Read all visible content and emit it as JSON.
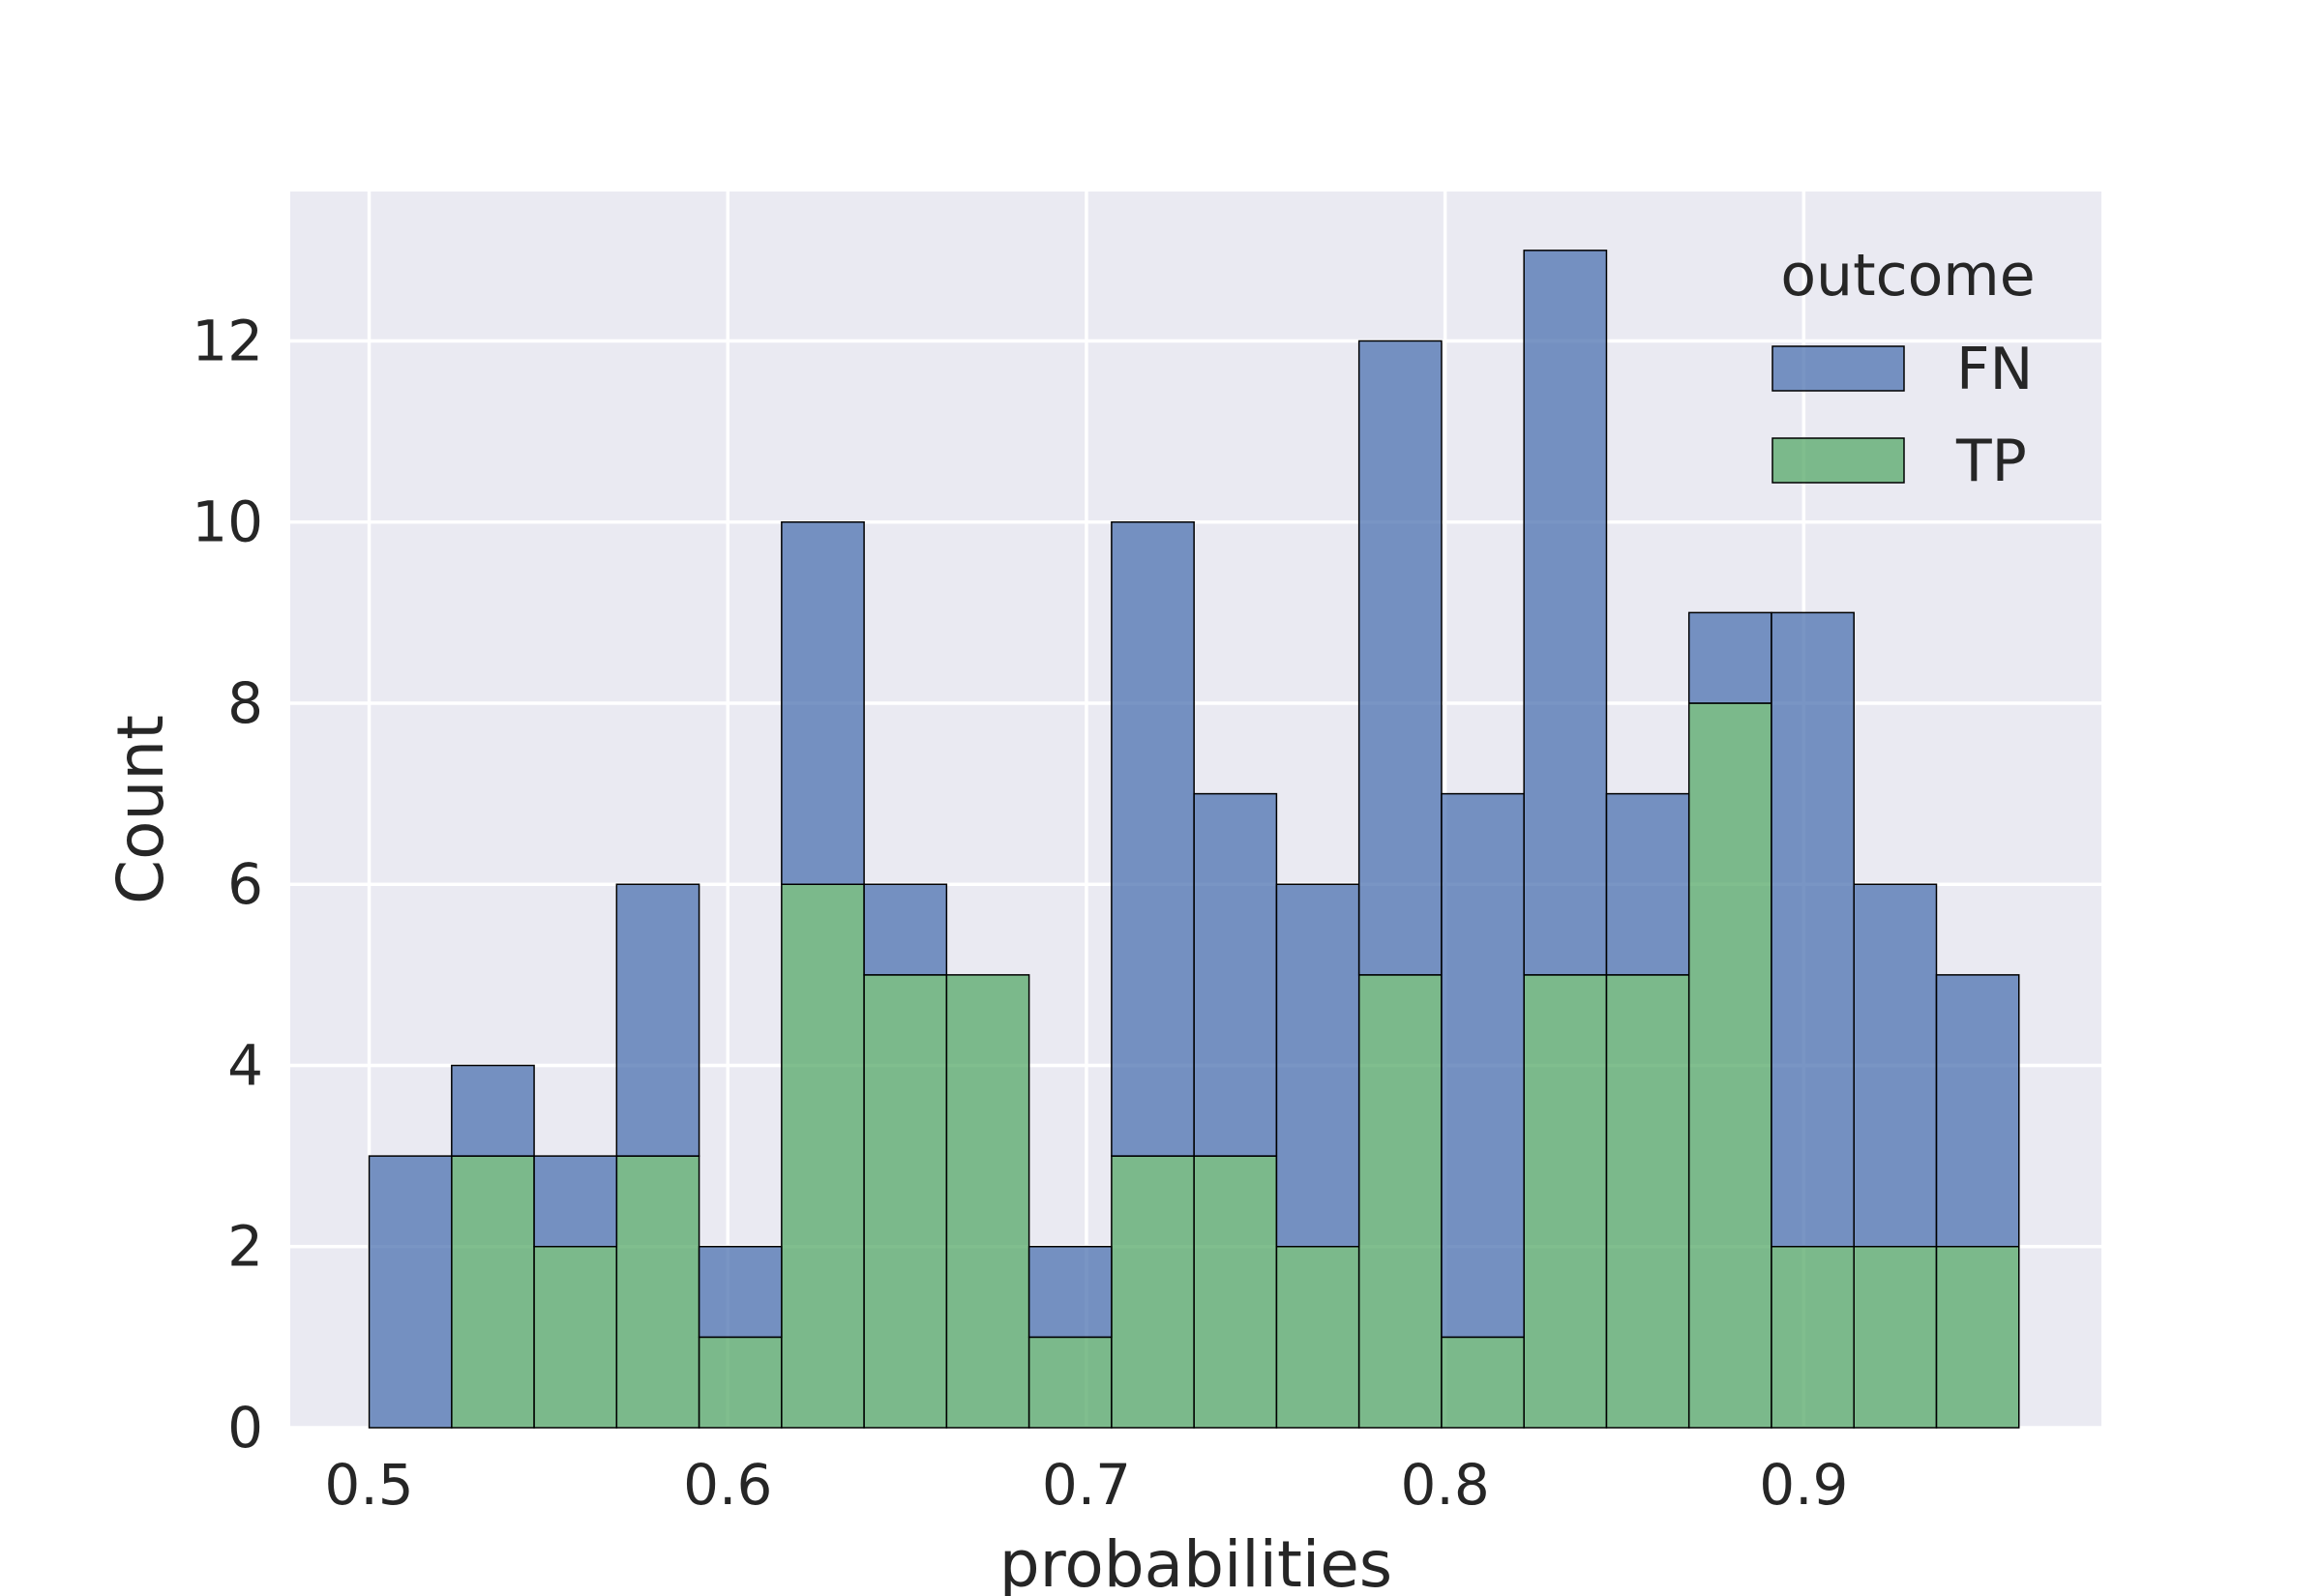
{
  "chart_data": {
    "type": "bar",
    "subtype": "stacked-histogram",
    "xlabel": "probabilities",
    "ylabel": "Count",
    "xlim": [
      0.478,
      0.983
    ],
    "ylim": [
      0,
      13.65
    ],
    "xticks": [
      0.5,
      0.6,
      0.7,
      0.8,
      0.9
    ],
    "yticks": [
      0,
      2,
      4,
      6,
      8,
      10,
      12
    ],
    "grid": true,
    "bin_edges": [
      0.5,
      0.523,
      0.546,
      0.569,
      0.592,
      0.615,
      0.638,
      0.661,
      0.684,
      0.707,
      0.73,
      0.753,
      0.776,
      0.799,
      0.822,
      0.845,
      0.868,
      0.891,
      0.914,
      0.937,
      0.96
    ],
    "legend": {
      "title": "outcome",
      "placement": "top-right"
    },
    "series": [
      {
        "name": "TP",
        "color": "#55a868",
        "values": [
          0,
          3,
          2,
          3,
          1,
          6,
          5,
          5,
          1,
          3,
          3,
          2,
          5,
          1,
          5,
          5,
          8,
          2,
          2,
          2
        ]
      },
      {
        "name": "FN",
        "color": "#4c72b0",
        "values": [
          3,
          1,
          1,
          3,
          1,
          4,
          1,
          0,
          1,
          7,
          4,
          4,
          7,
          6,
          8,
          2,
          1,
          7,
          4,
          3
        ]
      }
    ],
    "legend_order": [
      "FN",
      "TP"
    ]
  },
  "style": {
    "plot_background": "#eaeaf2",
    "grid_color": "#ffffff",
    "edge_color": "#000000"
  }
}
